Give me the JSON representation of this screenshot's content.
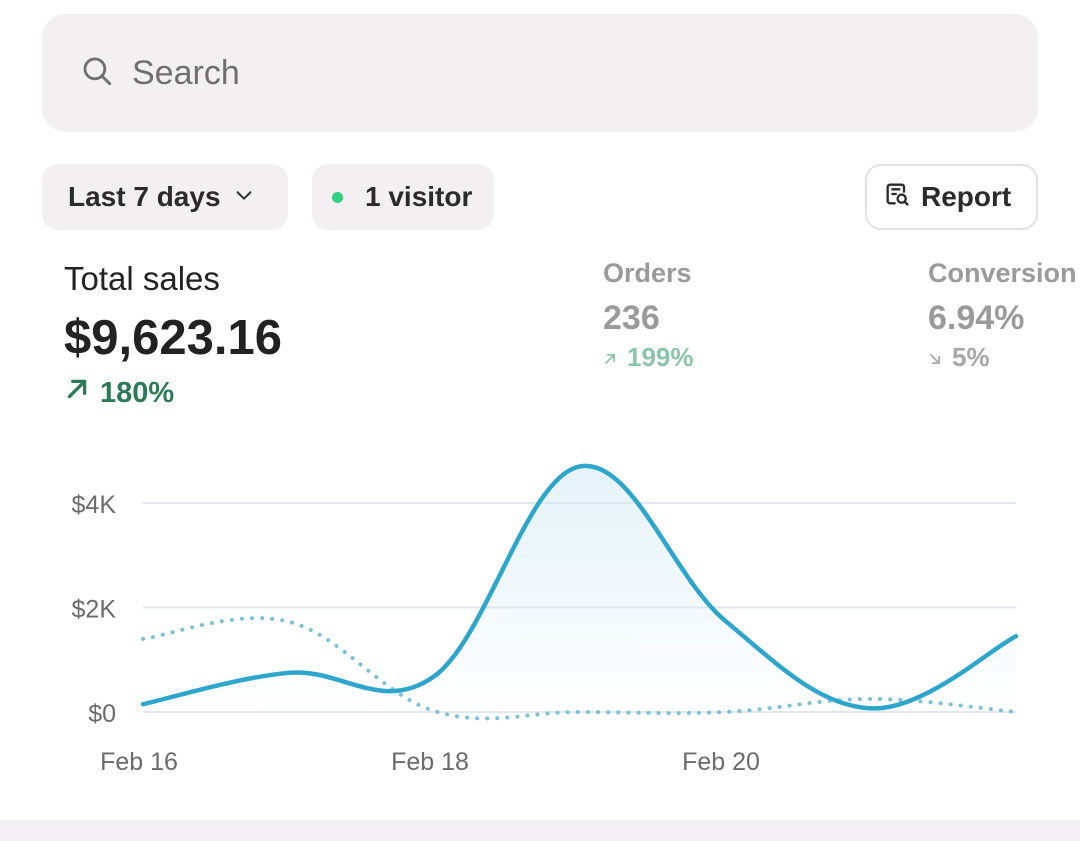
{
  "search": {
    "icon": "search-icon",
    "placeholder": "Search"
  },
  "filters": {
    "date_range": {
      "label": "Last 7 days",
      "icon": "chevron-down-icon"
    },
    "visitors": {
      "label": "1 visitor",
      "status_color": "#2fd07f"
    },
    "report_button": {
      "label": "Report",
      "icon": "report-search-icon"
    }
  },
  "metrics": {
    "total_sales": {
      "label": "Total sales",
      "value": "$9,623.16",
      "change": "180%",
      "direction": "up",
      "color": "#2b7a56"
    },
    "orders": {
      "label": "Orders",
      "value": "236",
      "change": "199%",
      "direction": "up"
    },
    "conversion": {
      "label": "Conversion",
      "value": "6.94%",
      "change": "5%",
      "direction": "down"
    }
  },
  "chart_data": {
    "type": "line",
    "ylabel": "",
    "xlabel": "",
    "y_tick_labels": [
      "$0",
      "$2K",
      "$4K"
    ],
    "y_ticks": [
      0,
      2000,
      4000
    ],
    "ylim": [
      0,
      4800
    ],
    "x_tick_labels": [
      "Feb 16",
      "Feb 18",
      "Feb 20"
    ],
    "x": [
      "Feb 16",
      "Feb 17",
      "Feb 18",
      "Feb 19",
      "Feb 20",
      "Feb 21",
      "Feb 22"
    ],
    "grid": true,
    "series": [
      {
        "style": "solid",
        "color": "#2ea6cc",
        "values": [
          150,
          750,
          680,
          4700,
          1750,
          70,
          1450
        ]
      },
      {
        "style": "dotted",
        "color": "#7dc1d8",
        "values": [
          1400,
          1730,
          20,
          0,
          0,
          250,
          0
        ]
      }
    ]
  }
}
